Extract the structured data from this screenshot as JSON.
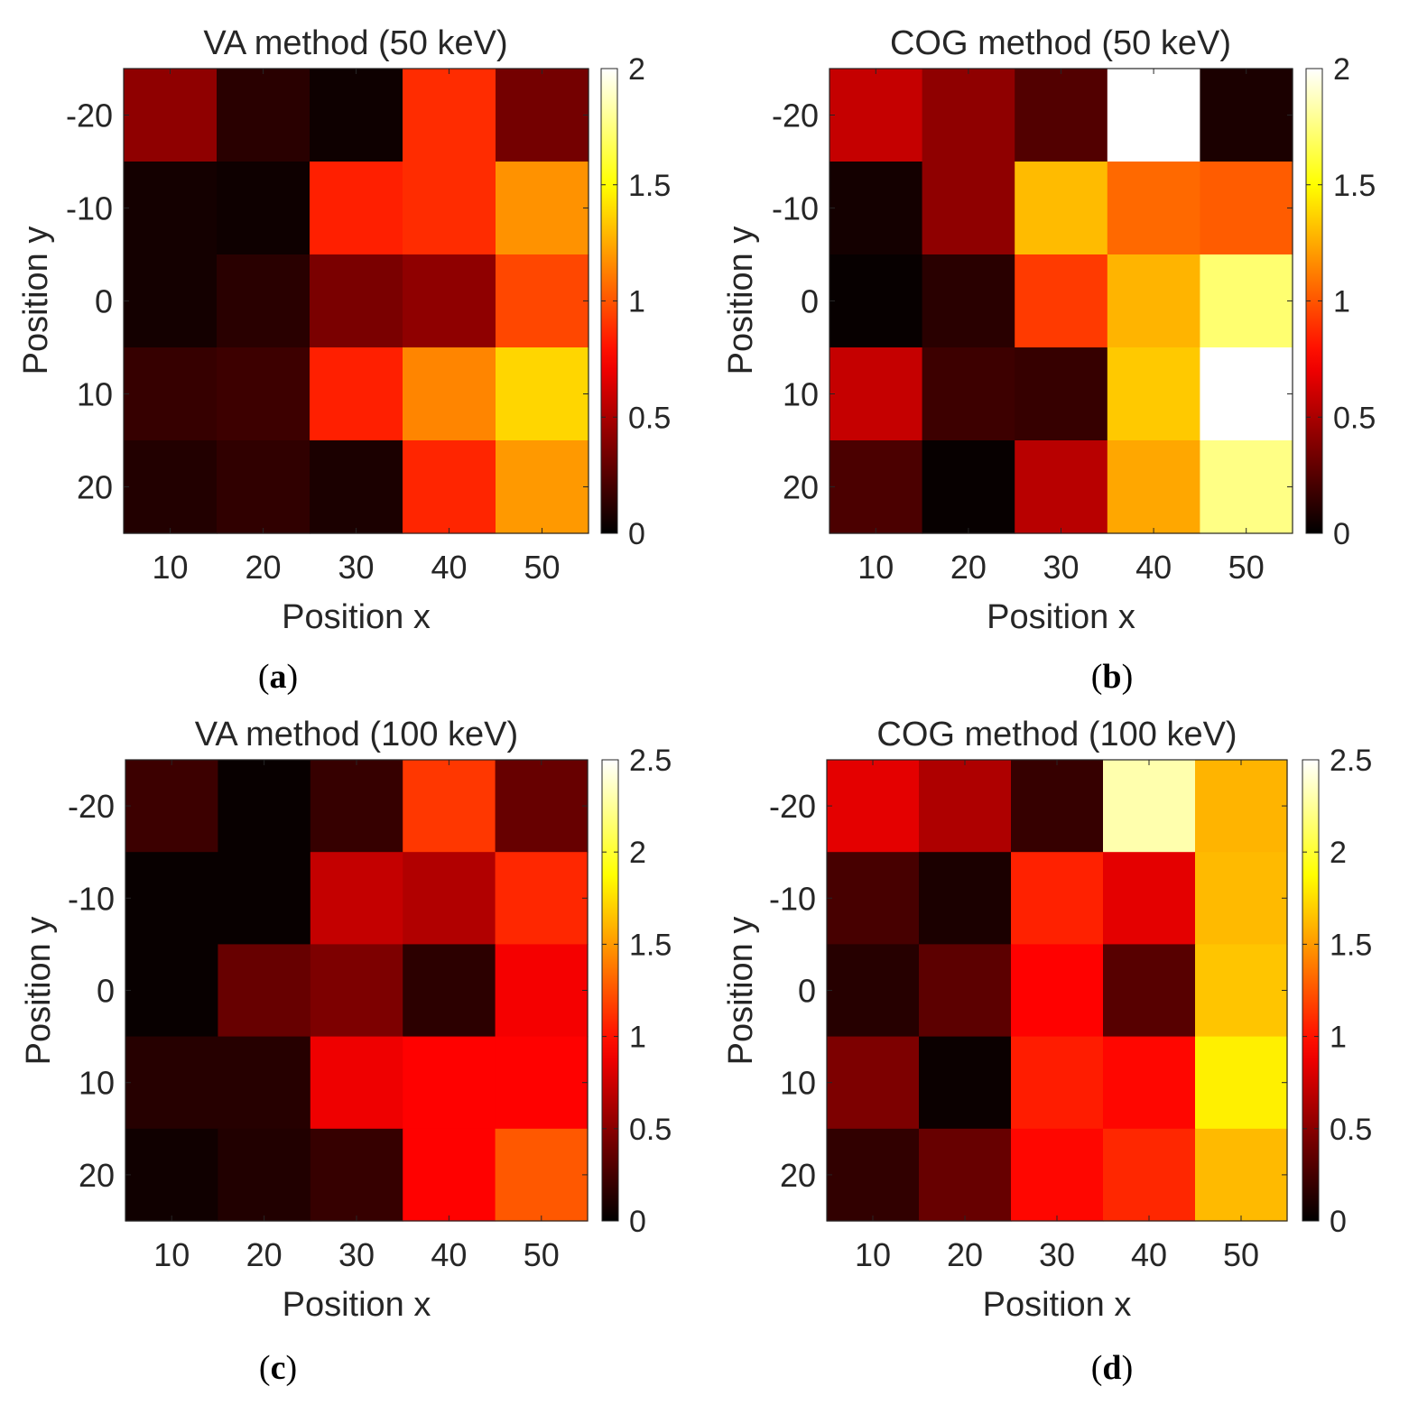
{
  "figure": {
    "panels": [
      {
        "caption": "a"
      },
      {
        "caption": "b"
      },
      {
        "caption": "c"
      },
      {
        "caption": "d"
      }
    ]
  },
  "chart_data": [
    {
      "type": "heatmap",
      "title": "VA method (50 keV)",
      "xlabel": "Position x",
      "ylabel": "Position y",
      "x": [
        10,
        20,
        30,
        40,
        50
      ],
      "y": [
        -20,
        -10,
        0,
        10,
        20
      ],
      "colormap": "hot",
      "clim": [
        0,
        2
      ],
      "colorbar_ticks": [
        0,
        0.5,
        1,
        1.5,
        2
      ],
      "values": [
        [
          0.42,
          0.12,
          0.04,
          0.88,
          0.34
        ],
        [
          0.06,
          0.04,
          0.84,
          0.88,
          1.18
        ],
        [
          0.06,
          0.12,
          0.36,
          0.42,
          0.96
        ],
        [
          0.16,
          0.18,
          0.84,
          1.14,
          1.38
        ],
        [
          0.1,
          0.14,
          0.08,
          0.86,
          1.2
        ]
      ]
    },
    {
      "type": "heatmap",
      "title": "COG method (50 keV)",
      "xlabel": "Position x",
      "ylabel": "Position y",
      "x": [
        10,
        20,
        30,
        40,
        50
      ],
      "y": [
        -20,
        -10,
        0,
        10,
        20
      ],
      "colormap": "hot",
      "clim": [
        0,
        2
      ],
      "colorbar_ticks": [
        0,
        0.5,
        1,
        1.5,
        2
      ],
      "values": [
        [
          0.58,
          0.42,
          0.24,
          2.0,
          0.08
        ],
        [
          0.06,
          0.42,
          1.3,
          1.06,
          1.02
        ],
        [
          0.02,
          0.12,
          0.92,
          1.28,
          1.72
        ],
        [
          0.58,
          0.18,
          0.16,
          1.34,
          2.0
        ],
        [
          0.22,
          0.02,
          0.54,
          1.24,
          1.76
        ]
      ]
    },
    {
      "type": "heatmap",
      "title": "VA method (100 keV)",
      "xlabel": "Position x",
      "ylabel": "Position y",
      "x": [
        10,
        20,
        30,
        40,
        50
      ],
      "y": [
        -20,
        -10,
        0,
        10,
        20
      ],
      "colormap": "hot",
      "clim": [
        0,
        2.5
      ],
      "colorbar_ticks": [
        0,
        0.5,
        1,
        1.5,
        2,
        2.5
      ],
      "values": [
        [
          0.22,
          0.03,
          0.2,
          1.14,
          0.38
        ],
        [
          0.03,
          0.03,
          0.72,
          0.65,
          1.08
        ],
        [
          0.03,
          0.38,
          0.46,
          0.16,
          0.9
        ],
        [
          0.14,
          0.14,
          0.88,
          0.94,
          0.94
        ],
        [
          0.06,
          0.12,
          0.2,
          0.94,
          1.26
        ]
      ]
    },
    {
      "type": "heatmap",
      "title": "COG method (100 keV)",
      "xlabel": "Position x",
      "ylabel": "Position y",
      "x": [
        10,
        20,
        30,
        40,
        50
      ],
      "y": [
        -20,
        -10,
        0,
        10,
        20
      ],
      "colormap": "hot",
      "clim": [
        0,
        2.5
      ],
      "colorbar_ticks": [
        0,
        0.5,
        1,
        1.5,
        2,
        2.5
      ],
      "values": [
        [
          0.84,
          0.64,
          0.2,
          2.3,
          1.6
        ],
        [
          0.26,
          0.1,
          1.06,
          0.84,
          1.62
        ],
        [
          0.14,
          0.34,
          0.94,
          0.32,
          1.66
        ],
        [
          0.46,
          0.04,
          1.04,
          0.96,
          1.82
        ],
        [
          0.18,
          0.38,
          0.96,
          1.08,
          1.62
        ]
      ]
    }
  ]
}
